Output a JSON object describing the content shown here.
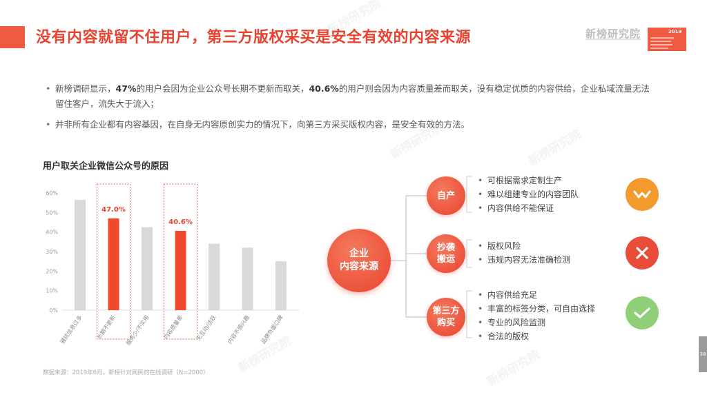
{
  "header": {
    "title": "没有内容就留不住用户，第三方版权采买是安全有效的内容来源",
    "logo": "新榜研究院",
    "year": "2019"
  },
  "bullets": [
    {
      "parts": [
        {
          "text": "新榜调研显示，",
          "bold": false
        },
        {
          "text": "47%",
          "bold": true
        },
        {
          "text": "的用户会因为企业公众号长期不更新而取关，",
          "bold": false
        },
        {
          "text": "40.6%",
          "bold": true
        },
        {
          "text": "的用户则会因为内容质量差而取关，没有稳定优质的内容供给，企业私域流量无法留住客户，流失大于流入；",
          "bold": false
        }
      ]
    },
    {
      "parts": [
        {
          "text": "并非所有企业都有内容基因，在自身无内容原创实力的情况下，向第三方采买版权内容，是安全有效的方法。",
          "bold": false
        }
      ]
    }
  ],
  "chart_title": "用户取关企业微信公众号的原因",
  "chart_data": {
    "type": "bar",
    "categories": [
      "骚扰信息过多",
      "长期不更新",
      "服务少/不实用",
      "内容质量差",
      "无互动/活跃",
      "内容不感兴趣",
      "品牌负面口碑"
    ],
    "values": [
      56.5,
      47.0,
      42.5,
      40.6,
      34.0,
      32.0,
      25.0
    ],
    "highlighted": [
      false,
      true,
      false,
      true,
      false,
      false,
      false
    ],
    "data_labels": {
      "1": "47.0%",
      "3": "40.6%"
    },
    "ylim": [
      0,
      60
    ],
    "yticks": [
      "0%",
      "10%",
      "20%",
      "30%",
      "40%",
      "50%",
      "60%"
    ],
    "title": "用户取关企业微信公众号的原因",
    "xlabel": "",
    "ylabel": "",
    "colors": {
      "normal": "#d9d9d9",
      "highlight": "#ef4a2e",
      "box": "#ef6b58",
      "label": "#e9432f"
    }
  },
  "source": "数据来源：2019年6月，新榜针对网民的在线调研（N=2000）",
  "diagram": {
    "center": "企业\n内容来源",
    "branches": [
      {
        "label": "自产",
        "items": [
          "可根据需求定制生产",
          "难以组建专业的内容团队",
          "内容供给不能保证"
        ],
        "status": "neutral",
        "status_icon": "wave-icon",
        "status_color": "#f29a2e"
      },
      {
        "label": "抄袭\n搬运",
        "items": [
          "版权风险",
          "违规内容无法准确检测"
        ],
        "status": "bad",
        "status_icon": "cross-icon",
        "status_color": "#ea4c3a"
      },
      {
        "label": "第三方\n购买",
        "items": [
          "内容供给充足",
          "丰富的标签分类，可自由选择",
          "专业的风险监测",
          "合法的版权"
        ],
        "status": "good",
        "status_icon": "check-icon",
        "status_color": "#8ecf78"
      }
    ]
  },
  "page_number": "38"
}
